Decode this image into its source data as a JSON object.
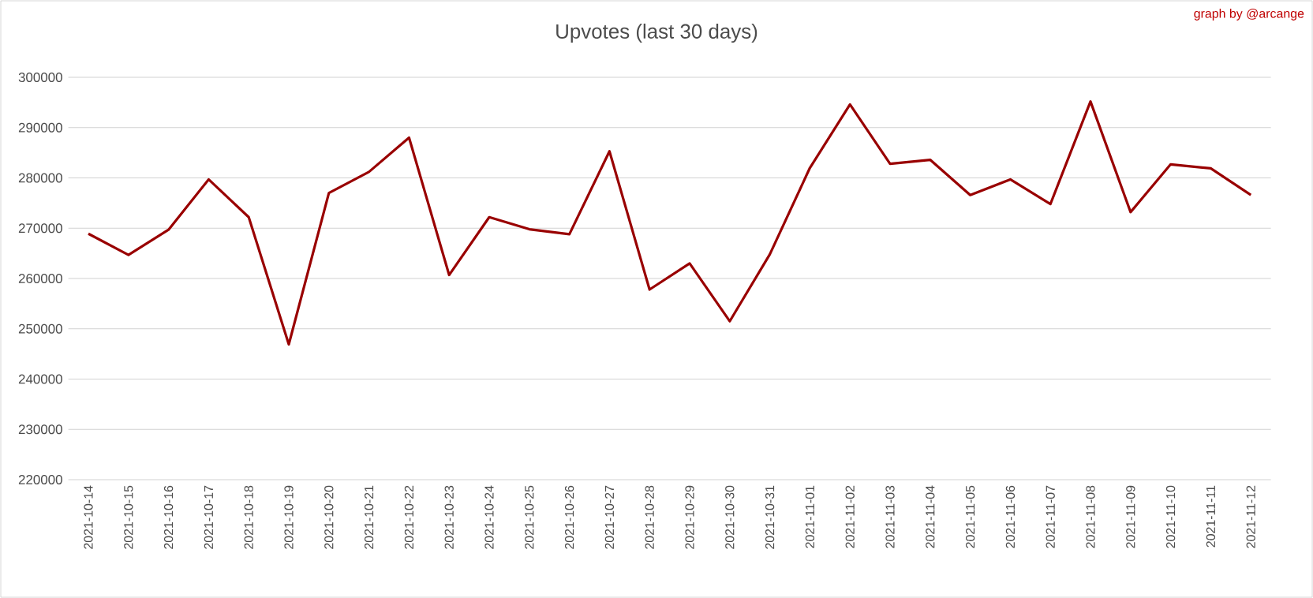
{
  "chart_data": {
    "type": "line",
    "title": "Upvotes (last 30 days)",
    "annotations": [
      "graph by @arcange"
    ],
    "categories": [
      "2021-10-14",
      "2021-10-15",
      "2021-10-16",
      "2021-10-17",
      "2021-10-18",
      "2021-10-19",
      "2021-10-20",
      "2021-10-21",
      "2021-10-22",
      "2021-10-23",
      "2021-10-24",
      "2021-10-25",
      "2021-10-26",
      "2021-10-27",
      "2021-10-28",
      "2021-10-29",
      "2021-10-30",
      "2021-10-31",
      "2021-11-01",
      "2021-11-02",
      "2021-11-03",
      "2021-11-04",
      "2021-11-05",
      "2021-11-06",
      "2021-11-07",
      "2021-11-08",
      "2021-11-09",
      "2021-11-10",
      "2021-11-11",
      "2021-11-12"
    ],
    "series": [
      {
        "color": "#990000",
        "values": [
          268900,
          264700,
          269700,
          279700,
          272200,
          246900,
          277000,
          281200,
          288000,
          260700,
          272200,
          269800,
          268800,
          285300,
          257800,
          263000,
          251500,
          264800,
          282000,
          294600,
          282800,
          283600,
          276600,
          279700,
          274800,
          295200,
          273200,
          282700,
          281900,
          276600
        ]
      }
    ],
    "ylim": [
      220000,
      300000
    ],
    "yticks": [
      220000,
      230000,
      240000,
      250000,
      260000,
      270000,
      280000,
      290000,
      300000
    ],
    "grid": "y",
    "marker": "none",
    "line_style": "solid"
  }
}
